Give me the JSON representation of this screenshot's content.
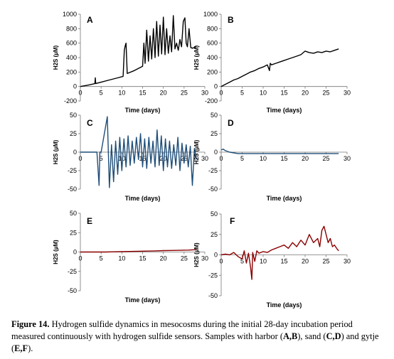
{
  "chart_data": [
    {
      "id": "A",
      "type": "line",
      "panel_label": "A",
      "xlabel": "Time  (days)",
      "ylabel": "H2S (µM)",
      "xlim": [
        0,
        30
      ],
      "ylim": [
        -200,
        1000
      ],
      "xticks": [
        0,
        5,
        10,
        15,
        20,
        25,
        30
      ],
      "yticks": [
        -200,
        0,
        200,
        400,
        600,
        800,
        1000
      ],
      "color": "#000000",
      "series": [
        {
          "x": [
            0,
            2,
            3.5,
            3.6,
            3.7,
            5,
            7,
            9,
            10.3,
            10.6,
            10.8,
            11.0,
            11.3,
            13,
            15,
            15.3,
            15.6,
            16.0,
            16.4,
            16.8,
            17.2,
            17.6,
            18.0,
            18.4,
            18.8,
            19.2,
            19.6,
            20.0,
            20.4,
            20.8,
            21.2,
            21.6,
            22.0,
            22.4,
            22.8,
            23.2,
            23.6,
            24.0,
            24.4,
            24.8,
            25.2,
            25.5,
            25.8,
            26.2,
            26.6,
            27.0,
            27.5,
            28.0
          ],
          "y": [
            0,
            20,
            40,
            120,
            40,
            60,
            90,
            120,
            140,
            500,
            560,
            600,
            180,
            220,
            280,
            600,
            320,
            780,
            350,
            700,
            380,
            800,
            400,
            900,
            420,
            850,
            450,
            960,
            440,
            800,
            460,
            700,
            480,
            980,
            520,
            600,
            500,
            650,
            550,
            900,
            950,
            600,
            550,
            800,
            540,
            530,
            540,
            560
          ]
        }
      ]
    },
    {
      "id": "B",
      "type": "line",
      "panel_label": "B",
      "xlabel": "Time  (days)",
      "ylabel": "H2S (µM)",
      "xlim": [
        0,
        30
      ],
      "ylim": [
        -200,
        1000
      ],
      "xticks": [
        0,
        5,
        10,
        15,
        20,
        25,
        30
      ],
      "yticks": [
        -200,
        0,
        200,
        400,
        600,
        800,
        1000
      ],
      "color": "#000000",
      "series": [
        {
          "x": [
            0,
            1,
            2,
            3,
            4,
            5,
            6,
            7,
            8,
            9,
            10,
            11,
            11.5,
            11.7,
            12,
            13,
            14,
            15,
            16,
            17,
            18,
            19,
            20,
            21,
            22,
            23,
            24,
            25,
            26,
            27,
            28
          ],
          "y": [
            0,
            30,
            60,
            90,
            110,
            140,
            170,
            200,
            220,
            250,
            270,
            300,
            220,
            320,
            300,
            320,
            340,
            360,
            380,
            400,
            420,
            440,
            490,
            470,
            460,
            480,
            470,
            490,
            480,
            500,
            520
          ]
        }
      ]
    },
    {
      "id": "C",
      "type": "line",
      "panel_label": "C",
      "xlabel": "Time  (days)",
      "ylabel": "H2S (µM)",
      "xlim": [
        0,
        30
      ],
      "ylim": [
        -50,
        50
      ],
      "xticks": [
        0,
        5,
        10,
        15,
        20,
        25,
        30
      ],
      "yticks": [
        -50,
        -25,
        0,
        25,
        50
      ],
      "color": "#1f4e79",
      "series": [
        {
          "x": [
            0,
            2,
            4,
            4.5,
            4.7,
            5,
            6.5,
            7,
            7.5,
            8,
            8.5,
            9,
            9.5,
            10,
            10.5,
            11,
            11.5,
            12,
            12.5,
            13,
            13.5,
            14,
            14.5,
            15,
            15.5,
            16,
            16.5,
            17,
            17.5,
            18,
            18.5,
            19,
            19.5,
            20,
            20.5,
            21,
            21.5,
            22,
            22.5,
            23,
            23.5,
            24,
            24.5,
            25,
            25.5,
            26,
            26.5,
            27,
            27.5,
            28
          ],
          "y": [
            0,
            0,
            0,
            -45,
            0,
            0,
            48,
            -48,
            10,
            -40,
            15,
            -30,
            20,
            -25,
            18,
            -20,
            22,
            -18,
            15,
            -15,
            20,
            -10,
            25,
            -20,
            18,
            -22,
            20,
            -15,
            15,
            -20,
            30,
            -18,
            22,
            -25,
            18,
            -20,
            15,
            -22,
            10,
            -18,
            20,
            -25,
            12,
            -15,
            10,
            -20,
            8,
            -45,
            5,
            -10
          ]
        }
      ]
    },
    {
      "id": "D",
      "type": "line",
      "panel_label": "D",
      "xlabel": "Time  (days)",
      "ylabel": "H2S (µM)",
      "xlim": [
        0,
        30
      ],
      "ylim": [
        -50,
        50
      ],
      "xticks": [
        0,
        5,
        10,
        15,
        20,
        25,
        30
      ],
      "yticks": [
        -50,
        -25,
        0,
        25,
        50
      ],
      "color": "#1f4e79",
      "series": [
        {
          "x": [
            0,
            0.5,
            1,
            2,
            3,
            4,
            5,
            6,
            8,
            10,
            12,
            14,
            16,
            18,
            20,
            22,
            24,
            26,
            28
          ],
          "y": [
            3,
            4,
            2,
            0,
            -1,
            -2,
            -2,
            -2,
            -2,
            -2,
            -2,
            -2,
            -2,
            -2,
            -2,
            -2,
            -2,
            -2,
            -2
          ]
        }
      ]
    },
    {
      "id": "E",
      "type": "line",
      "panel_label": "E",
      "xlabel": "Time  (days)",
      "ylabel": "H2S (µM)",
      "xlim": [
        0,
        30
      ],
      "ylim": [
        -50,
        50
      ],
      "xticks": [
        0,
        5,
        10,
        15,
        20,
        25,
        30
      ],
      "yticks": [
        -50,
        -25,
        0,
        25,
        50
      ],
      "color": "#8b0000",
      "series": [
        {
          "x": [
            0,
            2,
            4,
            6,
            8,
            10,
            12,
            14,
            16,
            18,
            20,
            22,
            24,
            26,
            28
          ],
          "y": [
            0,
            0,
            0,
            0,
            0.3,
            0.5,
            0.7,
            1,
            1.2,
            1.5,
            1.8,
            2,
            2.2,
            2.5,
            3
          ]
        }
      ]
    },
    {
      "id": "F",
      "type": "line",
      "panel_label": "F",
      "xlabel": "Time  (days)",
      "ylabel": "H2S (µM)",
      "xlim": [
        0,
        30
      ],
      "ylim": [
        -50,
        50
      ],
      "xticks": [
        0,
        5,
        10,
        15,
        20,
        25,
        30
      ],
      "yticks": [
        -50,
        -25,
        0,
        25,
        50
      ],
      "color": "#8b0000",
      "series": [
        {
          "x": [
            0,
            1,
            2,
            3,
            4,
            5,
            5.5,
            6,
            6.5,
            7,
            7.3,
            7.5,
            8,
            8.5,
            9,
            10,
            11,
            12,
            13,
            14,
            15,
            16,
            17,
            18,
            19,
            20,
            21,
            22,
            23,
            23.5,
            24,
            24.5,
            25,
            25.5,
            26,
            26.5,
            27,
            27.5,
            28
          ],
          "y": [
            0,
            1,
            0,
            3,
            -2,
            -5,
            5,
            -10,
            2,
            -15,
            -30,
            3,
            -8,
            5,
            2,
            4,
            3,
            6,
            8,
            10,
            12,
            8,
            15,
            10,
            18,
            12,
            25,
            15,
            20,
            10,
            30,
            35,
            25,
            15,
            20,
            10,
            12,
            8,
            5
          ]
        }
      ]
    }
  ],
  "caption": {
    "label": "Figure 14.",
    "text_1": " Hydrogen sulfide dynamics in mesocosms during the initial 28-day incubation period measured continuously with hydrogen sulfide sensors. Samples with harbor (",
    "ab": "A,B",
    "text_2": "), sand (",
    "cd": "C,D",
    "text_3": ") and gytje (",
    "ef": "E,F",
    "text_4": ")."
  }
}
